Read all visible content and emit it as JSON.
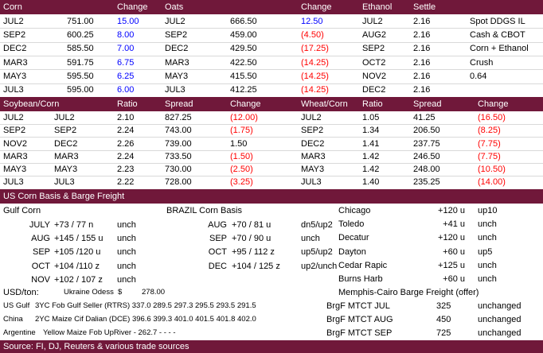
{
  "market_table": {
    "header": [
      "Corn",
      null,
      "Change",
      "Oats",
      null,
      "Change",
      "Ethanol",
      "Settle",
      null
    ],
    "rows": [
      [
        "JUL2",
        "751.00",
        "15.00",
        "JUL2",
        "666.50",
        "12.50",
        "JUL2",
        "2.16",
        "Spot DDGS IL"
      ],
      [
        "SEP2",
        "600.25",
        "8.00",
        "SEP2",
        "459.00",
        "(4.50)",
        "AUG2",
        "2.16",
        "Cash & CBOT"
      ],
      [
        "DEC2",
        "585.50",
        "7.00",
        "DEC2",
        "429.50",
        "(17.25)",
        "SEP2",
        "2.16",
        "Corn + Ethanol"
      ],
      [
        "MAR3",
        "591.75",
        "6.75",
        "MAR3",
        "422.50",
        "(14.25)",
        "OCT2",
        "2.16",
        "Crush"
      ],
      [
        "MAY3",
        "595.50",
        "6.25",
        "MAY3",
        "415.50",
        "(14.25)",
        "NOV2",
        "2.16",
        "0.64"
      ],
      [
        "JUL3",
        "595.00",
        "6.00",
        "JUL3",
        "412.25",
        "(14.25)",
        "DEC2",
        "2.16",
        null
      ]
    ]
  },
  "spread_table": {
    "header": [
      "Soybean/Corn",
      null,
      "Ratio",
      "Spread",
      "Change",
      "Wheat/Corn",
      "Ratio",
      "Spread",
      "Change"
    ],
    "rows": [
      [
        "JUL2",
        "JUL2",
        "2.10",
        "827.25",
        "(12.00)",
        "JUL2",
        "1.05",
        "41.25",
        "(16.50)"
      ],
      [
        "SEP2",
        "SEP2",
        "2.24",
        "743.00",
        "(1.75)",
        "SEP2",
        "1.34",
        "206.50",
        "(8.25)"
      ],
      [
        "NOV2",
        "DEC2",
        "2.26",
        "739.00",
        "1.50",
        "DEC2",
        "1.41",
        "237.75",
        "(7.75)"
      ],
      [
        "MAR3",
        "MAR3",
        "2.24",
        "733.50",
        "(1.50)",
        "MAR3",
        "1.42",
        "246.50",
        "(7.75)"
      ],
      [
        "MAY3",
        "MAY3",
        "2.23",
        "730.00",
        "(2.50)",
        "MAY3",
        "1.42",
        "248.00",
        "(10.50)"
      ],
      [
        "JUL3",
        "JUL3",
        "2.22",
        "728.00",
        "(3.25)",
        "JUL3",
        "1.40",
        "235.25",
        "(14.00)"
      ]
    ]
  },
  "basis": {
    "title": "US Corn Basis & Barge Freight",
    "gulf_title": "Gulf Corn",
    "brazil_title": "BRAZIL Corn Basis",
    "gulf_rows": [
      [
        "JULY",
        "+73 / 77 n",
        "unch"
      ],
      [
        "AUG",
        "+145 / 155 u",
        "unch"
      ],
      [
        "SEP",
        "+105 /120 u",
        "unch"
      ],
      [
        "OCT",
        "+104 /110 z",
        "unch"
      ],
      [
        "NOV",
        "+102 / 107 z",
        "unch"
      ]
    ],
    "brazil_rows": [
      [
        "AUG",
        "+70 / 81 u",
        "dn5/up2"
      ],
      [
        "SEP",
        "+70 / 90 u",
        "unch"
      ],
      [
        "OCT",
        "+95 / 112 z",
        "up5/up2"
      ],
      [
        "DEC",
        "+104 / 125 z",
        "up2/unch"
      ]
    ],
    "interior_rows": [
      [
        "Chicago",
        "+120 u",
        "up10"
      ],
      [
        "Toledo",
        "+41 u",
        "unch"
      ],
      [
        "Decatur",
        "+120 u",
        "unch"
      ],
      [
        "Dayton",
        "+60 u",
        "up5"
      ],
      [
        "Cedar Rapic",
        "+125 u",
        "unch"
      ],
      [
        "Burns Harb",
        "+60 u",
        "unch"
      ]
    ]
  },
  "freight": {
    "usd_label": "USD/ton:",
    "ukraine": [
      "Ukraine Odess",
      "$",
      "278.00"
    ],
    "barge_title": "Memphis-Cairo Barge Freight (offer)",
    "origin_rows": [
      [
        "US Gulf",
        "3YC Fob Gulf Seller (RTRS) 337.0 289.5 297.3 295.5 293.5 291.5"
      ],
      [
        "China",
        "2YC Maize Cif Dalian (DCE) 396.6 399.3 401.0 401.5 401.8 402.0"
      ],
      [
        "Argentine",
        "Yellow Maize Fob UpRiver  -  262.7  -  -  -  -"
      ]
    ],
    "barge_rows": [
      [
        "BrgF MTCT JUL",
        "325",
        "unchanged"
      ],
      [
        "BrgF MTCT AUG",
        "450",
        "unchanged"
      ],
      [
        "BrgF MTCT SEP",
        "725",
        "unchanged"
      ]
    ]
  },
  "source": "Source: FI, DJ, Reuters & various trade sources"
}
